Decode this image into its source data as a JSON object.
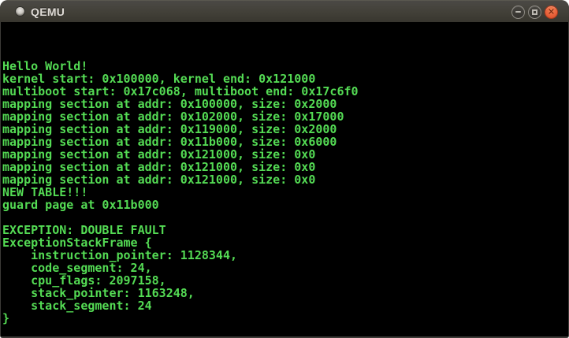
{
  "window": {
    "title": "QEMU"
  },
  "icons": {
    "app_icon": "qemu-window-icon",
    "minimize_glyph": "minus-bar",
    "maximize_glyph": "square-outline",
    "close_glyph": "✕"
  },
  "colors": {
    "titlebar_bg": "#403E38",
    "titlebar_text": "#DFDBD6",
    "close_button": "#E0562F",
    "terminal_bg": "#000000",
    "terminal_green": "#54DB54"
  },
  "console": {
    "lines": [
      "Hello World!",
      "kernel start: 0x100000, kernel end: 0x121000",
      "multiboot start: 0x17c068, multiboot end: 0x17c6f0",
      "mapping section at addr: 0x100000, size: 0x2000",
      "mapping section at addr: 0x102000, size: 0x17000",
      "mapping section at addr: 0x119000, size: 0x2000",
      "mapping section at addr: 0x11b000, size: 0x6000",
      "mapping section at addr: 0x121000, size: 0x0",
      "mapping section at addr: 0x121000, size: 0x0",
      "mapping section at addr: 0x121000, size: 0x0",
      "NEW TABLE!!!",
      "guard page at 0x11b000",
      "",
      "EXCEPTION: DOUBLE FAULT",
      "ExceptionStackFrame {",
      "    instruction_pointer: 1128344,",
      "    code_segment: 24,",
      "    cpu_flags: 2097158,",
      "    stack_pointer: 1163248,",
      "    stack_segment: 24",
      "}"
    ]
  }
}
